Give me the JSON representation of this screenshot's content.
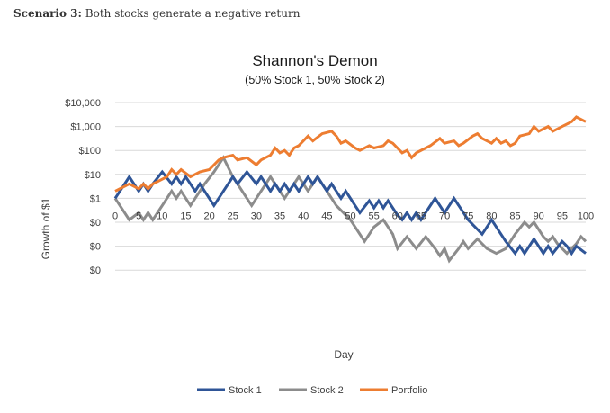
{
  "header": {
    "scenario_label": "Scenario 3:",
    "scenario_text": "Both stocks generate a negative return"
  },
  "chart_data": {
    "type": "line",
    "title": "Shannon's Demon",
    "subtitle": "(50% Stock 1, 50% Stock 2)",
    "xlabel": "Day",
    "ylabel": "Growth of $1",
    "xlim": [
      0,
      100
    ],
    "ylog_exponent_range": [
      -6,
      4
    ],
    "y_tick_labels": [
      "$10,000",
      "$1,000",
      "$100",
      "$10",
      "$1",
      "$0",
      "$0",
      "$0"
    ],
    "y_tick_exponents": [
      4,
      3,
      2,
      1,
      0,
      -1,
      -2,
      -3
    ],
    "x_ticks": [
      0,
      5,
      10,
      15,
      20,
      25,
      30,
      35,
      40,
      45,
      50,
      55,
      60,
      65,
      70,
      75,
      80,
      85,
      90,
      95,
      100
    ],
    "legend_position": "bottom",
    "colors": {
      "stock1": "#2f5597",
      "stock2": "#8c8c8c",
      "portfolio": "#ed7d31"
    },
    "series": [
      {
        "name": "Stock 1",
        "points": [
          [
            0,
            0.0
          ],
          [
            3,
            0.9
          ],
          [
            5,
            0.3
          ],
          [
            6,
            0.6
          ],
          [
            7,
            0.3
          ],
          [
            8,
            0.6
          ],
          [
            10,
            1.1
          ],
          [
            12,
            0.6
          ],
          [
            13,
            0.9
          ],
          [
            14,
            0.6
          ],
          [
            15,
            0.9
          ],
          [
            17,
            0.3
          ],
          [
            18,
            0.6
          ],
          [
            20,
            0.0
          ],
          [
            21,
            -0.3
          ],
          [
            23,
            0.3
          ],
          [
            25,
            0.9
          ],
          [
            26,
            0.6
          ],
          [
            28,
            1.1
          ],
          [
            30,
            0.6
          ],
          [
            31,
            0.9
          ],
          [
            33,
            0.3
          ],
          [
            34,
            0.6
          ],
          [
            35,
            0.3
          ],
          [
            36,
            0.6
          ],
          [
            37,
            0.3
          ],
          [
            38,
            0.6
          ],
          [
            39,
            0.3
          ],
          [
            41,
            0.9
          ],
          [
            42,
            0.6
          ],
          [
            43,
            0.9
          ],
          [
            44,
            0.6
          ],
          [
            45,
            0.3
          ],
          [
            46,
            0.6
          ],
          [
            47,
            0.3
          ],
          [
            48,
            0.0
          ],
          [
            49,
            0.3
          ],
          [
            51,
            -0.3
          ],
          [
            52,
            -0.6
          ],
          [
            54,
            -0.1
          ],
          [
            55,
            -0.4
          ],
          [
            56,
            -0.1
          ],
          [
            57,
            -0.4
          ],
          [
            58,
            -0.1
          ],
          [
            60,
            -0.7
          ],
          [
            61,
            -0.9
          ],
          [
            62,
            -0.6
          ],
          [
            63,
            -0.9
          ],
          [
            64,
            -0.6
          ],
          [
            65,
            -0.9
          ],
          [
            68,
            0.0
          ],
          [
            70,
            -0.6
          ],
          [
            72,
            0.0
          ],
          [
            75,
            -0.9
          ],
          [
            78,
            -1.5
          ],
          [
            80,
            -0.9
          ],
          [
            83,
            -1.8
          ],
          [
            85,
            -2.3
          ],
          [
            86,
            -2.0
          ],
          [
            87,
            -2.3
          ],
          [
            89,
            -1.7
          ],
          [
            91,
            -2.3
          ],
          [
            92,
            -2.0
          ],
          [
            93,
            -2.3
          ],
          [
            95,
            -1.8
          ],
          [
            96,
            -2.0
          ],
          [
            97,
            -2.3
          ],
          [
            98,
            -2.0
          ],
          [
            100,
            -2.3
          ]
        ]
      },
      {
        "name": "Stock 2",
        "points": [
          [
            0,
            0.0
          ],
          [
            2,
            -0.6
          ],
          [
            3,
            -0.9
          ],
          [
            5,
            -0.6
          ],
          [
            6,
            -0.9
          ],
          [
            7,
            -0.6
          ],
          [
            8,
            -0.9
          ],
          [
            10,
            -0.3
          ],
          [
            12,
            0.3
          ],
          [
            13,
            0.0
          ],
          [
            14,
            0.3
          ],
          [
            16,
            -0.3
          ],
          [
            17,
            0.0
          ],
          [
            19,
            0.6
          ],
          [
            21,
            1.1
          ],
          [
            23,
            1.7
          ],
          [
            24,
            1.3
          ],
          [
            25,
            0.9
          ],
          [
            28,
            0.0
          ],
          [
            29,
            -0.3
          ],
          [
            30,
            0.0
          ],
          [
            31,
            0.3
          ],
          [
            33,
            0.9
          ],
          [
            34,
            0.6
          ],
          [
            36,
            0.0
          ],
          [
            37,
            0.3
          ],
          [
            39,
            0.9
          ],
          [
            40,
            0.6
          ],
          [
            41,
            0.3
          ],
          [
            42,
            0.6
          ],
          [
            43,
            0.9
          ],
          [
            45,
            0.3
          ],
          [
            46,
            0.0
          ],
          [
            47,
            -0.3
          ],
          [
            50,
            -0.9
          ],
          [
            52,
            -1.5
          ],
          [
            53,
            -1.8
          ],
          [
            55,
            -1.2
          ],
          [
            57,
            -0.9
          ],
          [
            59,
            -1.5
          ],
          [
            60,
            -2.1
          ],
          [
            62,
            -1.6
          ],
          [
            64,
            -2.1
          ],
          [
            66,
            -1.6
          ],
          [
            68,
            -2.1
          ],
          [
            69,
            -2.4
          ],
          [
            70,
            -2.1
          ],
          [
            71,
            -2.6
          ],
          [
            73,
            -2.1
          ],
          [
            74,
            -1.8
          ],
          [
            75,
            -2.1
          ],
          [
            77,
            -1.7
          ],
          [
            79,
            -2.1
          ],
          [
            81,
            -2.3
          ],
          [
            83,
            -2.1
          ],
          [
            85,
            -1.5
          ],
          [
            87,
            -1.0
          ],
          [
            88,
            -1.2
          ],
          [
            89,
            -1.0
          ],
          [
            91,
            -1.6
          ],
          [
            92,
            -1.8
          ],
          [
            93,
            -1.6
          ],
          [
            94,
            -1.9
          ],
          [
            96,
            -2.3
          ],
          [
            98,
            -1.9
          ],
          [
            99,
            -1.6
          ],
          [
            100,
            -1.8
          ]
        ]
      },
      {
        "name": "Portfolio",
        "points": [
          [
            0,
            0.3
          ],
          [
            3,
            0.6
          ],
          [
            5,
            0.4
          ],
          [
            6,
            0.6
          ],
          [
            7,
            0.4
          ],
          [
            8,
            0.6
          ],
          [
            9,
            0.7
          ],
          [
            11,
            0.9
          ],
          [
            12,
            1.2
          ],
          [
            13,
            1.0
          ],
          [
            14,
            1.2
          ],
          [
            16,
            0.9
          ],
          [
            18,
            1.1
          ],
          [
            20,
            1.2
          ],
          [
            22,
            1.6
          ],
          [
            23,
            1.7
          ],
          [
            25,
            1.8
          ],
          [
            26,
            1.6
          ],
          [
            28,
            1.7
          ],
          [
            30,
            1.4
          ],
          [
            31,
            1.6
          ],
          [
            33,
            1.8
          ],
          [
            34,
            2.1
          ],
          [
            35,
            1.9
          ],
          [
            36,
            2.0
          ],
          [
            37,
            1.8
          ],
          [
            38,
            2.1
          ],
          [
            39,
            2.2
          ],
          [
            41,
            2.6
          ],
          [
            42,
            2.4
          ],
          [
            44,
            2.7
          ],
          [
            46,
            2.8
          ],
          [
            47,
            2.6
          ],
          [
            48,
            2.3
          ],
          [
            49,
            2.4
          ],
          [
            51,
            2.1
          ],
          [
            52,
            2.0
          ],
          [
            54,
            2.2
          ],
          [
            55,
            2.1
          ],
          [
            57,
            2.2
          ],
          [
            58,
            2.4
          ],
          [
            59,
            2.3
          ],
          [
            61,
            1.9
          ],
          [
            62,
            2.0
          ],
          [
            63,
            1.7
          ],
          [
            64,
            1.9
          ],
          [
            66,
            2.1
          ],
          [
            67,
            2.2
          ],
          [
            69,
            2.5
          ],
          [
            70,
            2.3
          ],
          [
            72,
            2.4
          ],
          [
            73,
            2.2
          ],
          [
            74,
            2.3
          ],
          [
            76,
            2.6
          ],
          [
            77,
            2.7
          ],
          [
            78,
            2.5
          ],
          [
            80,
            2.3
          ],
          [
            81,
            2.5
          ],
          [
            82,
            2.3
          ],
          [
            83,
            2.4
          ],
          [
            84,
            2.2
          ],
          [
            85,
            2.3
          ],
          [
            86,
            2.6
          ],
          [
            88,
            2.7
          ],
          [
            89,
            3.0
          ],
          [
            90,
            2.8
          ],
          [
            92,
            3.0
          ],
          [
            93,
            2.8
          ],
          [
            95,
            3.0
          ],
          [
            97,
            3.2
          ],
          [
            98,
            3.4
          ],
          [
            100,
            3.2
          ]
        ]
      }
    ]
  }
}
